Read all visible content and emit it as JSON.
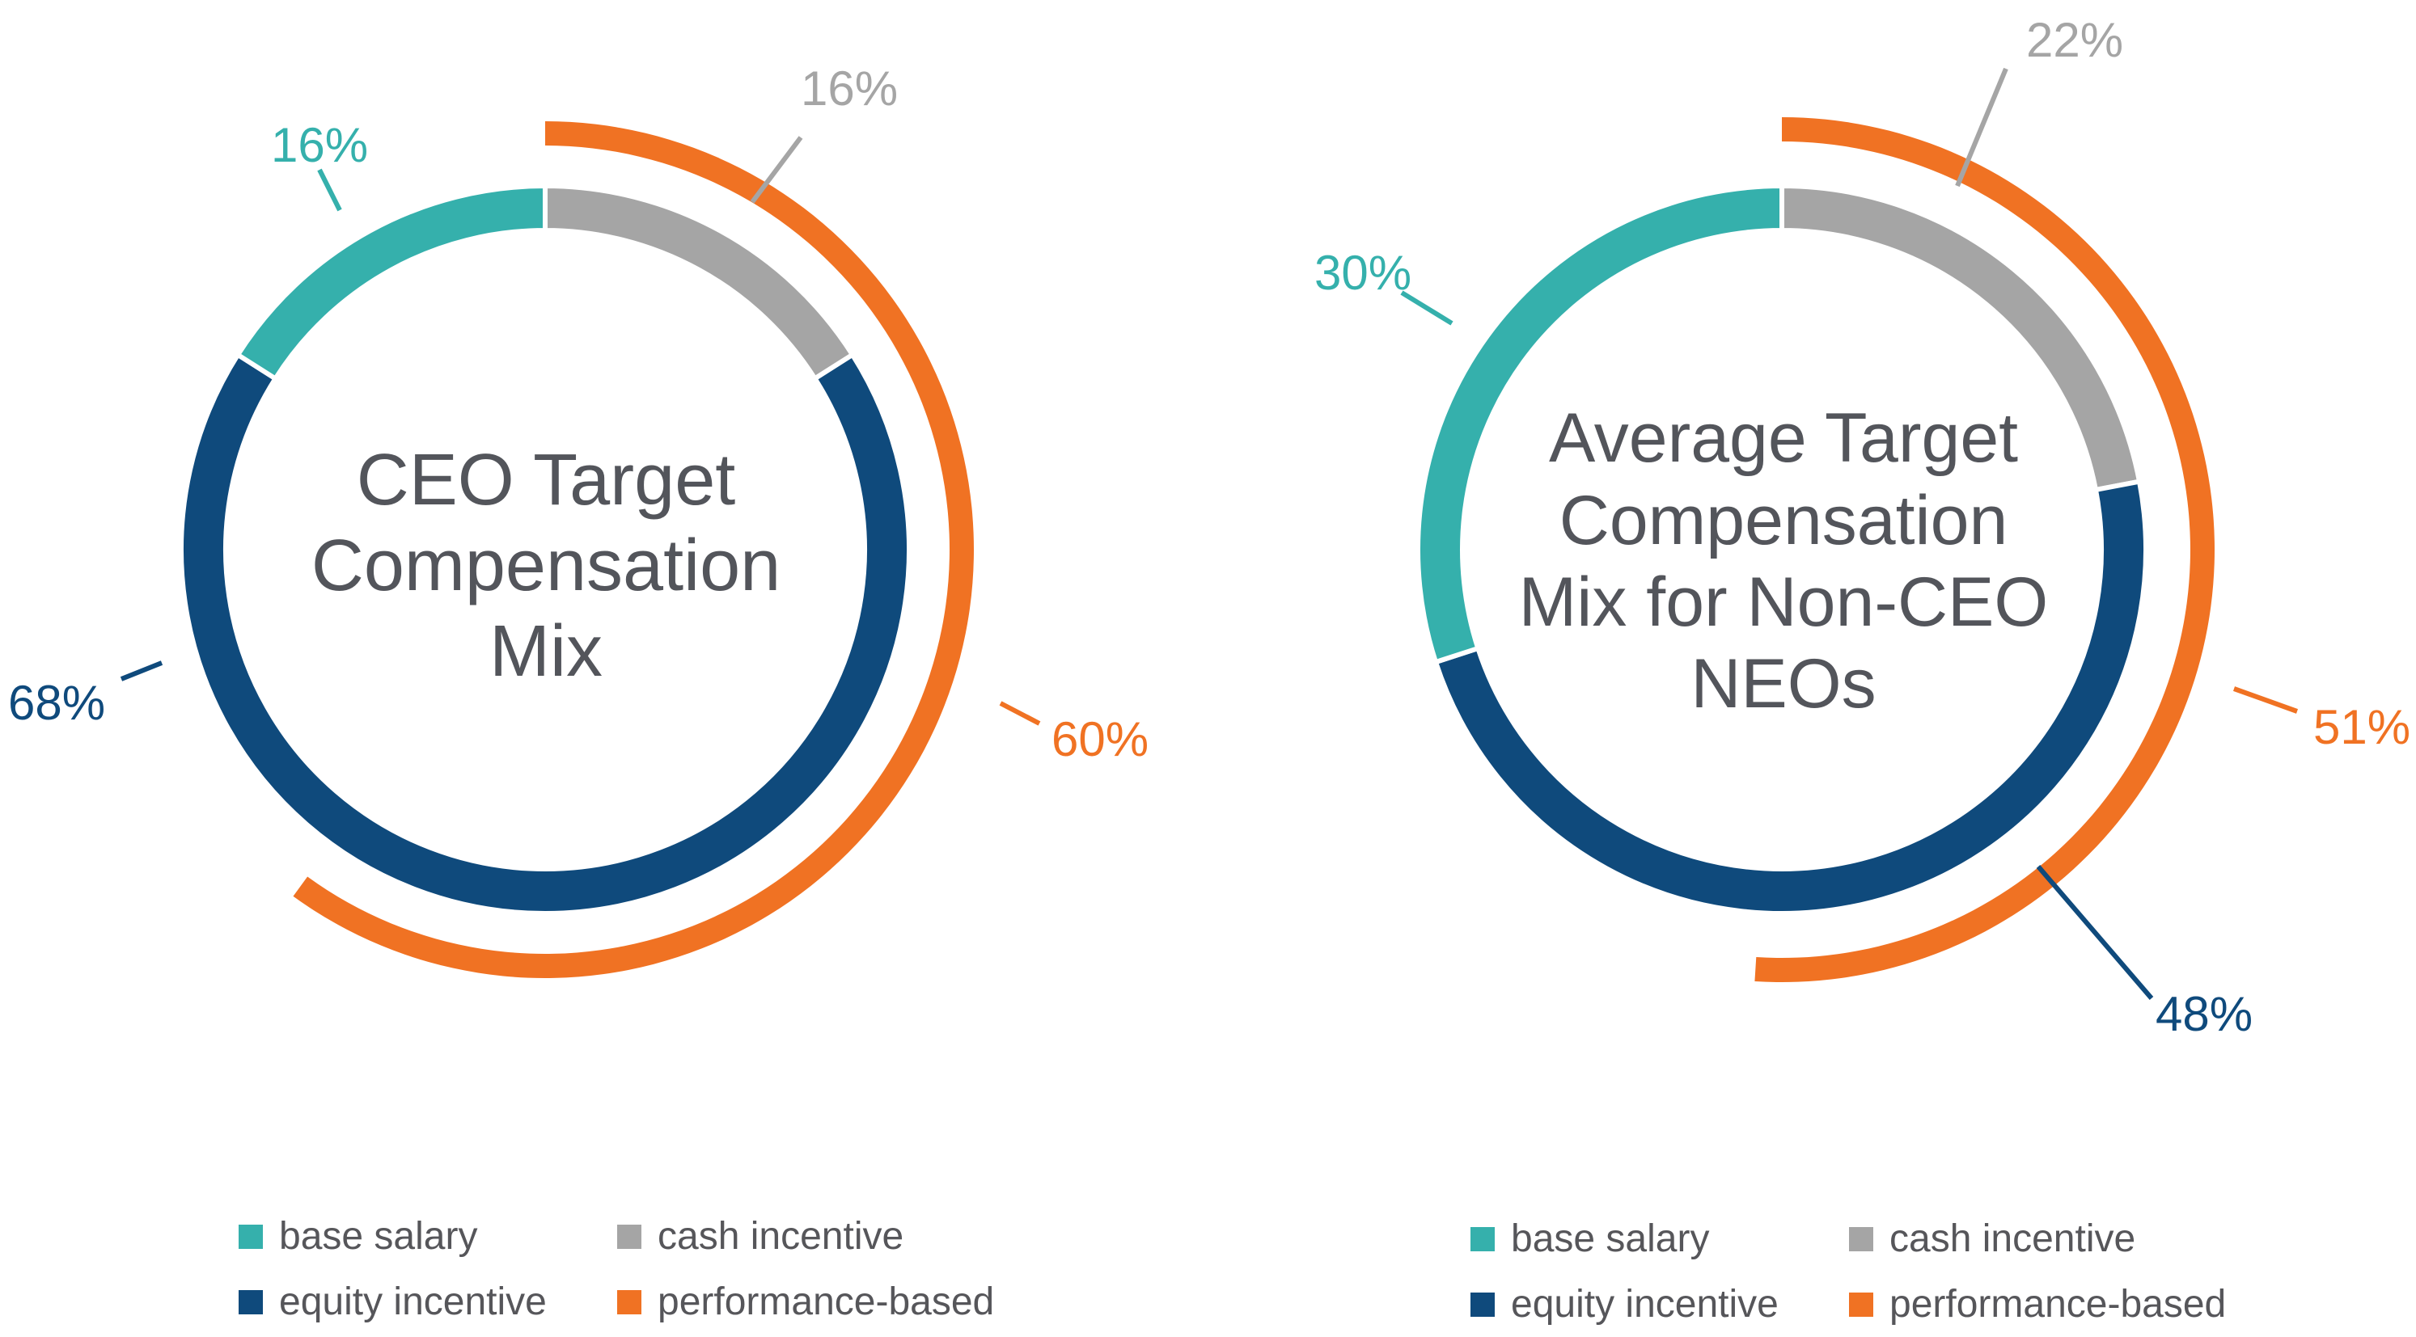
{
  "colors": {
    "base salary": "#35b0ac",
    "cash incentive": "#a5a5a5",
    "equity incentive": "#0f4a7c",
    "performance-based": "#f07223"
  },
  "chart_data": [
    {
      "type": "pie",
      "subtype": "nested-donut",
      "title": "CEO Target Compensation Mix",
      "inner_ring": {
        "categories": [
          "cash incentive",
          "equity incentive",
          "base salary"
        ],
        "values": [
          16,
          68,
          16
        ],
        "labels": [
          "16%",
          "68%",
          "16%"
        ]
      },
      "outer_arc": {
        "category": "performance-based",
        "value": 60,
        "label": "60%"
      },
      "legend": [
        "base salary",
        "cash incentive",
        "equity incentive",
        "performance-based"
      ],
      "legend_position": "bottom"
    },
    {
      "type": "pie",
      "subtype": "nested-donut",
      "title": "Average Target Compensation Mix for Non-CEO NEOs",
      "inner_ring": {
        "categories": [
          "cash incentive",
          "equity incentive",
          "base salary"
        ],
        "values": [
          22,
          48,
          30
        ],
        "labels": [
          "22%",
          "48%",
          "30%"
        ]
      },
      "outer_arc": {
        "category": "performance-based",
        "value": 51,
        "label": "51%"
      },
      "legend": [
        "base salary",
        "cash incentive",
        "equity incentive",
        "performance-based"
      ],
      "legend_position": "bottom"
    }
  ]
}
